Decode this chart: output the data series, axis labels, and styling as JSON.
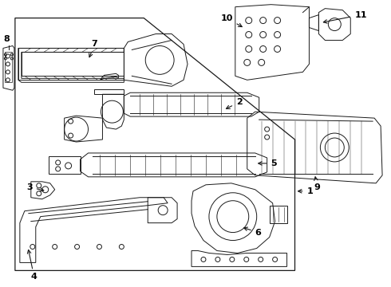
{
  "background": "#ffffff",
  "line_color": "#1a1a1a",
  "label_color": "#000000",
  "fig_width": 4.9,
  "fig_height": 3.6,
  "dpi": 100
}
